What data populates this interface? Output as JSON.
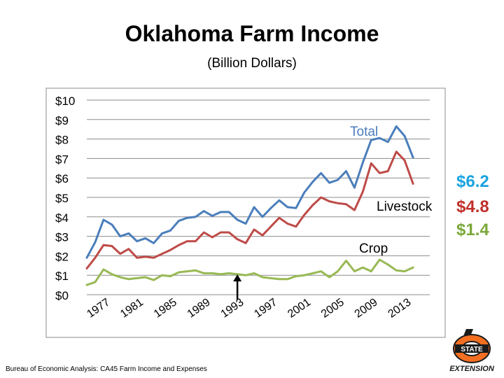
{
  "title": "Oklahoma Farm Income",
  "subtitle": "(Billion Dollars)",
  "source": "Bureau of Economic Analysis: CA45 Farm Income and Expenses",
  "end_values": {
    "total": "$6.2",
    "livestock": "$4.8",
    "crop": "$1.4"
  },
  "colors": {
    "total": "#4a7ebb",
    "livestock": "#be4b48",
    "crop": "#98b954",
    "total_value": "#1ba3e0",
    "livestock_value": "#c0302b",
    "crop_value": "#7aa83a"
  },
  "logo": {
    "text_top": "STATE",
    "text_bottom": "EXTENSION"
  },
  "chart_data": {
    "type": "line",
    "x": [
      1975,
      1976,
      1977,
      1978,
      1979,
      1980,
      1981,
      1982,
      1983,
      1984,
      1985,
      1986,
      1987,
      1988,
      1989,
      1990,
      1991,
      1992,
      1993,
      1994,
      1995,
      1996,
      1997,
      1998,
      1999,
      2000,
      2001,
      2002,
      2003,
      2004,
      2005,
      2006,
      2007,
      2008,
      2009,
      2010,
      2011,
      2012,
      2013,
      2014,
      2015,
      2016
    ],
    "x_ticks": [
      "1977",
      "1981",
      "1985",
      "1989",
      "1993",
      "1997",
      "2001",
      "2005",
      "2009",
      "2013"
    ],
    "y_ticks": [
      "$0",
      "$1",
      "$2",
      "$3",
      "$4",
      "$5",
      "$6",
      "$7",
      "$8",
      "$9",
      "$10"
    ],
    "ylim": [
      0,
      10
    ],
    "grid": true,
    "annotation": {
      "type": "arrow",
      "x": 1993
    },
    "series": [
      {
        "name": "Total",
        "values": [
          1.9,
          2.7,
          3.85,
          3.6,
          3.0,
          3.15,
          2.75,
          2.9,
          2.65,
          3.15,
          3.3,
          3.8,
          3.95,
          4.0,
          4.3,
          4.05,
          4.25,
          4.25,
          3.85,
          3.65,
          4.5,
          4.0,
          4.45,
          4.85,
          4.5,
          4.45,
          5.25,
          5.8,
          6.25,
          5.75,
          5.9,
          6.35,
          5.5,
          6.8,
          7.95,
          8.05,
          7.85,
          8.65,
          8.15,
          7.05,
          null,
          null
        ]
      },
      {
        "name": "Livestock",
        "values": [
          1.35,
          1.9,
          2.55,
          2.5,
          2.1,
          2.35,
          1.9,
          1.95,
          1.9,
          2.1,
          2.3,
          2.55,
          2.75,
          2.75,
          3.2,
          2.95,
          3.2,
          3.2,
          2.85,
          2.65,
          3.35,
          3.05,
          3.5,
          3.95,
          3.65,
          3.5,
          4.1,
          4.6,
          5.0,
          4.8,
          4.7,
          4.65,
          4.35,
          5.3,
          6.75,
          6.25,
          6.35,
          7.35,
          6.9,
          5.7,
          null,
          null
        ]
      },
      {
        "name": "Crop",
        "values": [
          0.5,
          0.65,
          1.3,
          1.05,
          0.9,
          0.8,
          0.85,
          0.9,
          0.75,
          1.0,
          0.95,
          1.15,
          1.2,
          1.25,
          1.1,
          1.1,
          1.05,
          1.1,
          1.05,
          1.0,
          1.1,
          0.9,
          0.85,
          0.8,
          0.8,
          0.95,
          1.0,
          1.1,
          1.2,
          0.9,
          1.2,
          1.75,
          1.2,
          1.4,
          1.2,
          1.8,
          1.55,
          1.25,
          1.2,
          1.4,
          null,
          null
        ]
      }
    ]
  }
}
